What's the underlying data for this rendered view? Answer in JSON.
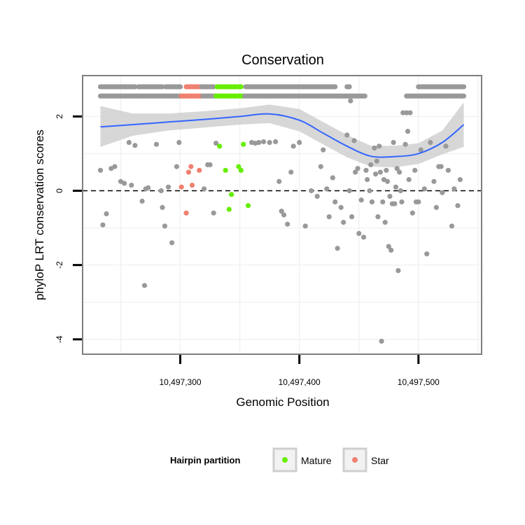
{
  "chart_data": {
    "type": "scatter",
    "title": "Conservation",
    "xlabel": "Genomic Position",
    "ylabel": "phyloP LRT conservation scores",
    "xlim": [
      10497218,
      10497553
    ],
    "ylim": [
      -4.4,
      3.1
    ],
    "x_ticks": [
      {
        "value": 10497300,
        "label": "10,497,300"
      },
      {
        "value": 10497400,
        "label": "10,497,400"
      },
      {
        "value": 10497500,
        "label": "10,497,500"
      }
    ],
    "y_ticks": [
      {
        "value": -4,
        "label": "-4"
      },
      {
        "value": -2,
        "label": "-2"
      },
      {
        "value": 0,
        "label": "0"
      },
      {
        "value": 2,
        "label": "2"
      }
    ],
    "reference_line": {
      "y": 0,
      "style": "dashed"
    },
    "grid": true,
    "legend": {
      "title": "Hairpin partition",
      "placement": "bottom",
      "entries": [
        {
          "name": "Mature",
          "color": "#66ee00"
        },
        {
          "name": "Star",
          "color": "#f08070"
        }
      ]
    },
    "colors": {
      "other": "#999999",
      "Mature": "#66ee00",
      "Star": "#f08070",
      "smooth": "#3366ff",
      "band": "#d0d0d0"
    },
    "smooth": {
      "x": [
        10497233,
        10497260,
        10497290,
        10497320,
        10497350,
        10497375,
        10497400,
        10497420,
        10497440,
        10497460,
        10497480,
        10497500,
        10497520,
        10497538
      ],
      "y": [
        1.72,
        1.78,
        1.85,
        1.92,
        2.0,
        2.07,
        1.9,
        1.55,
        1.2,
        0.93,
        0.92,
        1.0,
        1.3,
        1.78
      ],
      "lower": [
        1.18,
        1.48,
        1.62,
        1.7,
        1.78,
        1.82,
        1.6,
        1.25,
        0.9,
        0.65,
        0.63,
        0.72,
        0.98,
        1.18
      ],
      "upper": [
        2.28,
        2.08,
        2.08,
        2.14,
        2.22,
        2.32,
        2.2,
        1.85,
        1.5,
        1.21,
        1.21,
        1.28,
        1.62,
        2.38
      ]
    },
    "series": [
      {
        "name": "",
        "group": "other",
        "points": [
          [
            10497233,
            0.55
          ],
          [
            10497235,
            -0.92
          ],
          [
            10497238,
            -0.62
          ],
          [
            10497242,
            0.6
          ],
          [
            10497245,
            0.65
          ],
          [
            10497250,
            0.25
          ],
          [
            10497253,
            0.2
          ],
          [
            10497257,
            1.3
          ],
          [
            10497259,
            0.15
          ],
          [
            10497262,
            1.22
          ],
          [
            10497268,
            -0.28
          ],
          [
            10497270,
            -2.55
          ],
          [
            10497271,
            0.05
          ],
          [
            10497273,
            0.08
          ],
          [
            10497280,
            1.25
          ],
          [
            10497284,
            0.0
          ],
          [
            10497285,
            -0.45
          ],
          [
            10497287,
            -0.95
          ],
          [
            10497290,
            0.1
          ],
          [
            10497293,
            -1.4
          ],
          [
            10497297,
            0.65
          ],
          [
            10497299,
            1.3
          ],
          [
            10497320,
            0.05
          ],
          [
            10497323,
            0.7
          ],
          [
            10497325,
            0.7
          ],
          [
            10497328,
            -0.6
          ],
          [
            10497330,
            1.28
          ],
          [
            10497360,
            1.3
          ],
          [
            10497363,
            1.28
          ],
          [
            10497366,
            1.3
          ],
          [
            10497370,
            1.32
          ],
          [
            10497375,
            1.3
          ],
          [
            10497380,
            1.32
          ],
          [
            10497383,
            0.25
          ],
          [
            10497385,
            -0.55
          ],
          [
            10497387,
            -0.65
          ],
          [
            10497390,
            -0.9
          ],
          [
            10497393,
            0.5
          ],
          [
            10497395,
            1.2
          ],
          [
            10497400,
            1.3
          ],
          [
            10497405,
            -0.95
          ],
          [
            10497410,
            0.0
          ],
          [
            10497415,
            -0.15
          ],
          [
            10497418,
            0.65
          ],
          [
            10497420,
            1.1
          ],
          [
            10497423,
            0.05
          ],
          [
            10497425,
            -0.7
          ],
          [
            10497428,
            0.35
          ],
          [
            10497430,
            -0.3
          ],
          [
            10497432,
            -1.55
          ],
          [
            10497435,
            -0.45
          ],
          [
            10497437,
            -0.85
          ],
          [
            10497440,
            1.5
          ],
          [
            10497442,
            0.0
          ],
          [
            10497444,
            -0.7
          ],
          [
            10497446,
            1.35
          ],
          [
            10497447,
            0.5
          ],
          [
            10497449,
            0.6
          ],
          [
            10497450,
            -1.15
          ],
          [
            10497452,
            -0.25
          ],
          [
            10497454,
            -1.25
          ],
          [
            10497456,
            0.55
          ],
          [
            10497457,
            0.3
          ],
          [
            10497459,
            0.0
          ],
          [
            10497460,
            0.7
          ],
          [
            10497461,
            -0.3
          ],
          [
            10497463,
            1.15
          ],
          [
            10497464,
            0.45
          ],
          [
            10497465,
            0.8
          ],
          [
            10497466,
            -0.7
          ],
          [
            10497467,
            1.2
          ],
          [
            10497468,
            0.5
          ],
          [
            10497469,
            -4.05
          ],
          [
            10497470,
            -0.3
          ],
          [
            10497471,
            0.3
          ],
          [
            10497472,
            -0.85
          ],
          [
            10497473,
            0.55
          ],
          [
            10497474,
            0.25
          ],
          [
            10497475,
            -1.5
          ],
          [
            10497476,
            -0.15
          ],
          [
            10497477,
            -1.6
          ],
          [
            10497478,
            -0.35
          ],
          [
            10497479,
            1.3
          ],
          [
            10497480,
            -0.35
          ],
          [
            10497481,
            0.1
          ],
          [
            10497482,
            0.6
          ],
          [
            10497483,
            -2.15
          ],
          [
            10497484,
            0.5
          ],
          [
            10497485,
            0.0
          ],
          [
            10497486,
            -0.3
          ],
          [
            10497487,
            2.1
          ],
          [
            10497489,
            1.25
          ],
          [
            10497490,
            2.1
          ],
          [
            10497491,
            1.6
          ],
          [
            10497492,
            0.3
          ],
          [
            10497493,
            2.1
          ],
          [
            10497495,
            -0.6
          ],
          [
            10497497,
            0.55
          ],
          [
            10497498,
            -0.3
          ],
          [
            10497500,
            -0.3
          ],
          [
            10497502,
            1.1
          ],
          [
            10497505,
            0.05
          ],
          [
            10497507,
            -1.7
          ],
          [
            10497510,
            1.3
          ],
          [
            10497513,
            0.25
          ],
          [
            10497515,
            -0.45
          ],
          [
            10497517,
            0.65
          ],
          [
            10497519,
            0.65
          ],
          [
            10497520,
            -0.05
          ],
          [
            10497523,
            1.2
          ],
          [
            10497525,
            0.55
          ],
          [
            10497528,
            -0.95
          ],
          [
            10497530,
            0.05
          ],
          [
            10497533,
            -0.4
          ],
          [
            10497535,
            0.3
          ]
        ]
      },
      {
        "name": "Mature",
        "group": "Mature",
        "points": [
          [
            10497333,
            1.2
          ],
          [
            10497338,
            0.55
          ],
          [
            10497341,
            -0.5
          ],
          [
            10497343,
            -0.1
          ],
          [
            10497349,
            0.65
          ],
          [
            10497351,
            0.55
          ],
          [
            10497353,
            1.25
          ],
          [
            10497357,
            -0.4
          ]
        ]
      },
      {
        "name": "Star",
        "group": "Star",
        "points": [
          [
            10497301,
            0.1
          ],
          [
            10497305,
            -0.6
          ],
          [
            10497307,
            0.5
          ],
          [
            10497309,
            0.65
          ],
          [
            10497310,
            0.15
          ],
          [
            10497316,
            0.55
          ]
        ]
      }
    ],
    "top_rows": [
      {
        "y": 2.8,
        "segments": [
          {
            "group": "other",
            "from": 10497233,
            "to": 10497262
          },
          {
            "group": "other",
            "from": 10497265,
            "to": 10497285
          },
          {
            "group": "other",
            "from": 10497288,
            "to": 10497300
          },
          {
            "group": "Star",
            "from": 10497305,
            "to": 10497317
          },
          {
            "group": "other",
            "from": 10497318,
            "to": 10497328
          },
          {
            "group": "Mature",
            "from": 10497331,
            "to": 10497351
          },
          {
            "group": "other",
            "from": 10497355,
            "to": 10497430
          },
          {
            "group": "other",
            "from": 10497440,
            "to": 10497442
          },
          {
            "group": "other",
            "from": 10497500,
            "to": 10497538
          }
        ]
      },
      {
        "y": 2.55,
        "segments": [
          {
            "group": "other",
            "from": 10497233,
            "to": 10497300
          },
          {
            "group": "Star",
            "from": 10497301,
            "to": 10497318
          },
          {
            "group": "other",
            "from": 10497319,
            "to": 10497329
          },
          {
            "group": "Mature",
            "from": 10497330,
            "to": 10497353
          },
          {
            "group": "other",
            "from": 10497354,
            "to": 10497455
          },
          {
            "group": "other",
            "from": 10497490,
            "to": 10497538
          }
        ]
      }
    ],
    "extra_points": [
      [
        10497443,
        2.42
      ]
    ]
  }
}
